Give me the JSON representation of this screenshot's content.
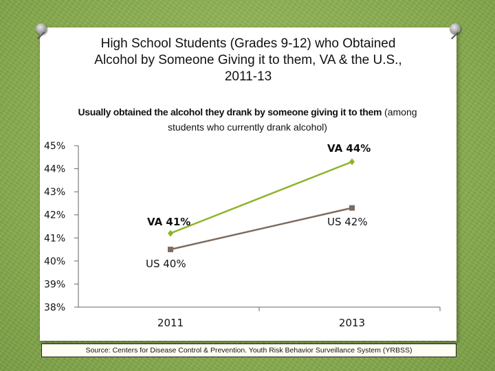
{
  "title": {
    "line1": "High School Students (Grades 9-12) who Obtained",
    "line2_bold": "Alcohol by Someone Giving it to them,",
    "line2_rest": " VA & the U.S.,",
    "line3": "2011-13"
  },
  "subtitle": {
    "bold": "Usually obtained the alcohol they drank by someone giving it to them",
    "rest": " (among students who currently drank alcohol)"
  },
  "source": "Source: Centers for Disease Control & Prevention. Youth Risk Behavior Surveillance System (YRBSS)",
  "colors": {
    "va": "#8db42a",
    "us": "#7f6b5d",
    "axis": "#666666",
    "background": "#8fb255"
  },
  "chart_data": {
    "type": "line",
    "categories": [
      "2011",
      "2013"
    ],
    "ylim": [
      38,
      45
    ],
    "yticks": [
      "45%",
      "44%",
      "43%",
      "42%",
      "41%",
      "40%",
      "39%",
      "38%"
    ],
    "grid": false,
    "series": [
      {
        "name": "VA",
        "values": [
          41.2,
          44.3
        ],
        "labels": [
          "VA 41%",
          "VA 44%"
        ],
        "color": "#8db42a",
        "marker": "diamond"
      },
      {
        "name": "US",
        "values": [
          40.5,
          42.3
        ],
        "labels": [
          "US 40%",
          "US 42%"
        ],
        "color": "#7f6b5d",
        "marker": "square"
      }
    ]
  }
}
